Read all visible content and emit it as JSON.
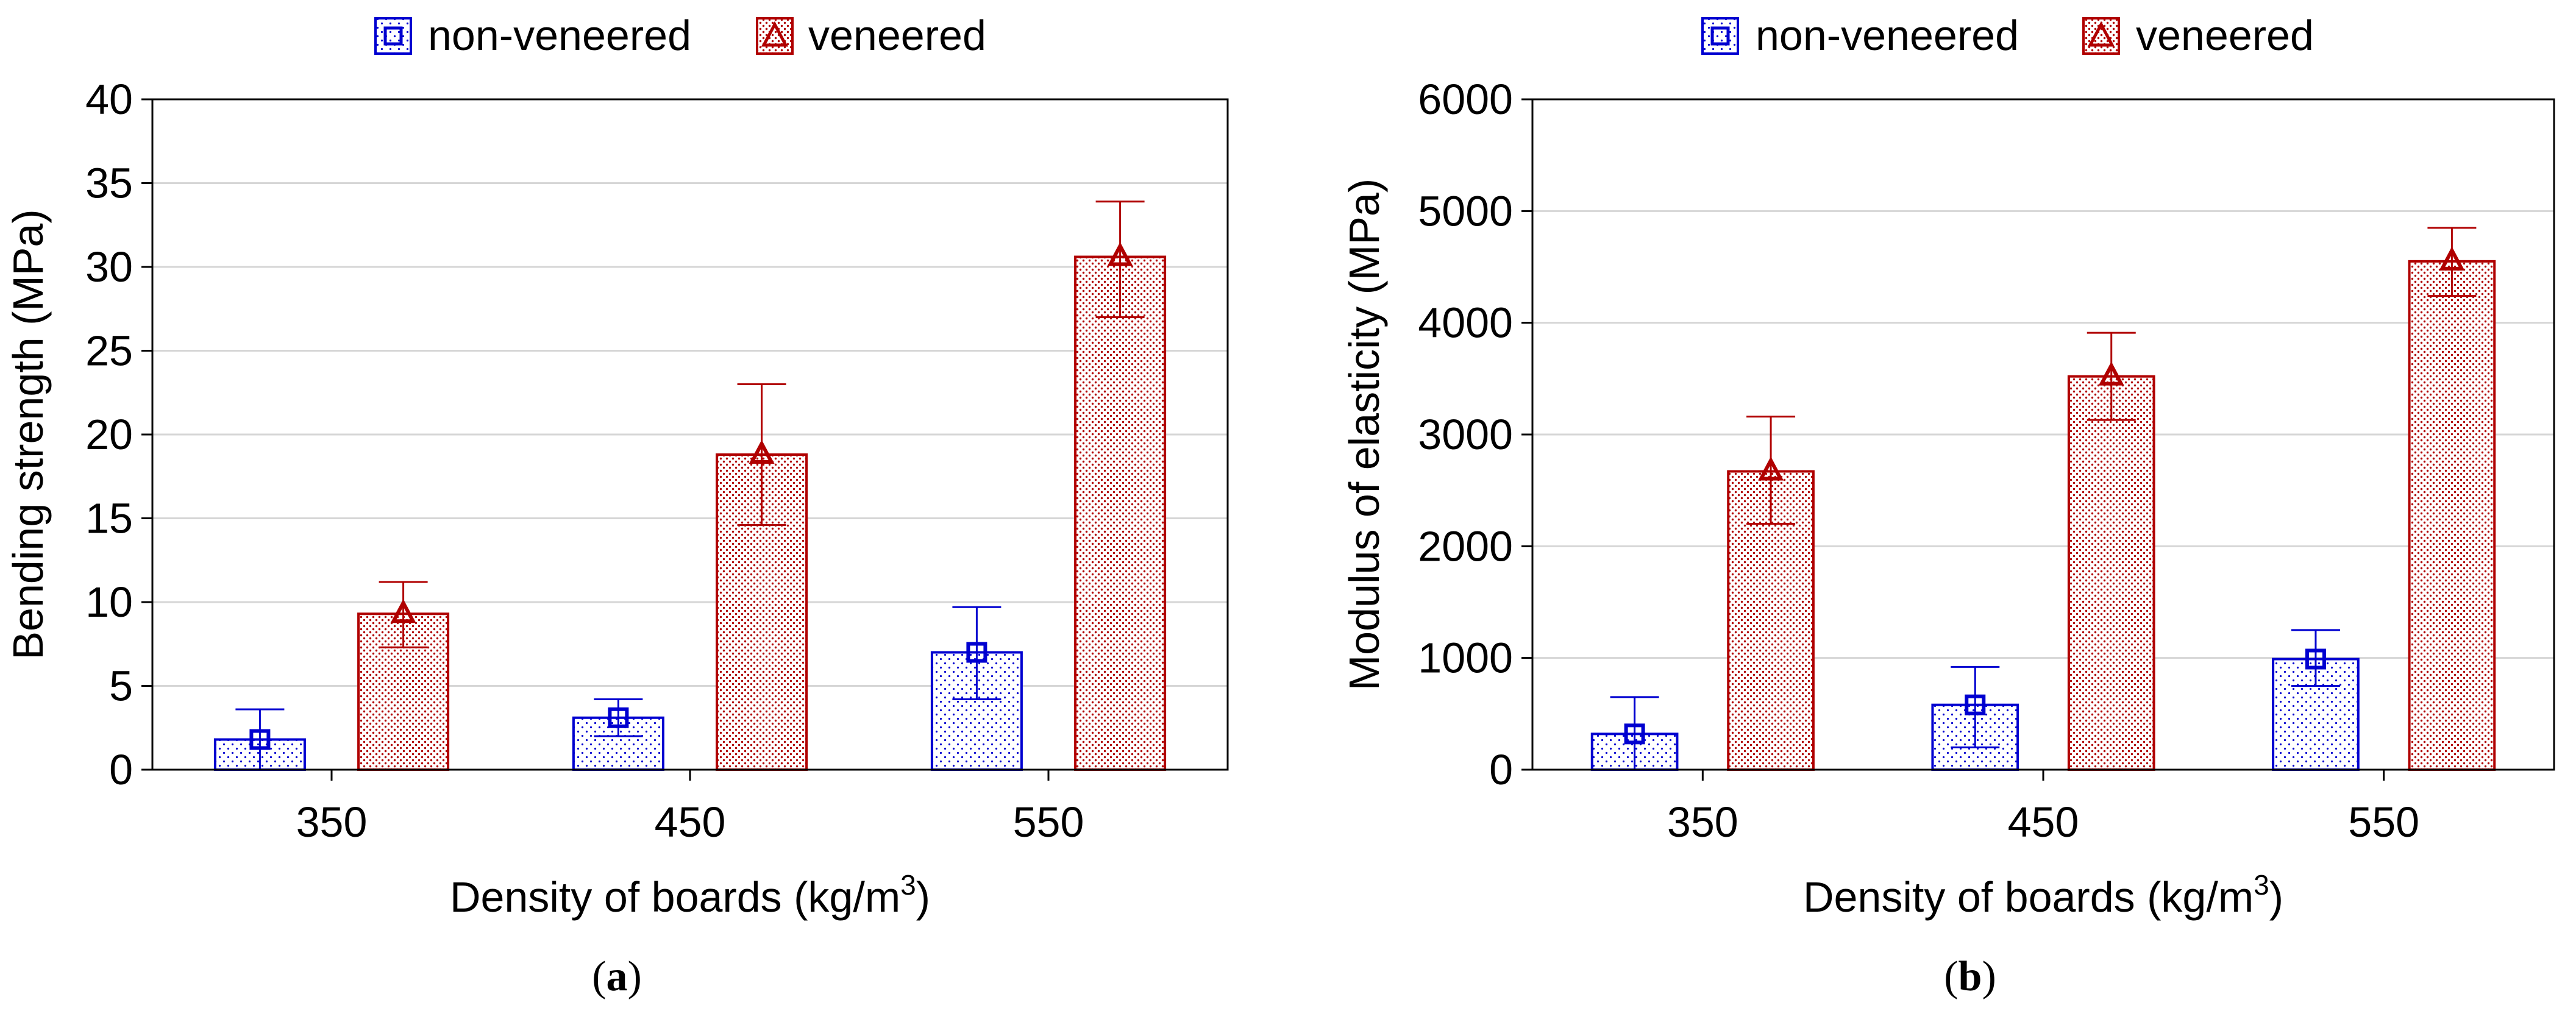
{
  "chart_data": [
    {
      "type": "bar",
      "panel_label": "a",
      "xlabel": "Density of boards (kg/m",
      "xlabel_sup": "3",
      "xlabel_end": ")",
      "ylabel": "Bending strength (MPa)",
      "categories": [
        "350",
        "450",
        "550"
      ],
      "ylim": [
        0,
        40
      ],
      "yticks": [
        0,
        5,
        10,
        15,
        20,
        25,
        30,
        35,
        40
      ],
      "grid": true,
      "legend_position": "top-center",
      "series": [
        {
          "name": "non-veneered",
          "marker": "square",
          "color": "#0000d0",
          "values": [
            1.8,
            3.1,
            7.0
          ],
          "err_low": [
            0.0,
            2.0,
            4.2
          ],
          "err_high": [
            3.6,
            4.2,
            9.7
          ]
        },
        {
          "name": "veneered",
          "marker": "triangle",
          "color": "#b00000",
          "values": [
            9.3,
            18.8,
            30.6
          ],
          "err_low": [
            7.3,
            14.6,
            27.0
          ],
          "err_high": [
            11.2,
            23.0,
            33.9
          ]
        }
      ]
    },
    {
      "type": "bar",
      "panel_label": "b",
      "xlabel": "Density of boards (kg/m",
      "xlabel_sup": "3",
      "xlabel_end": ")",
      "ylabel": "Modulus of elasticity (MPa)",
      "categories": [
        "350",
        "450",
        "550"
      ],
      "ylim": [
        0,
        6000
      ],
      "yticks": [
        0,
        1000,
        2000,
        3000,
        4000,
        5000,
        6000
      ],
      "grid": true,
      "legend_position": "top-center",
      "series": [
        {
          "name": "non-veneered",
          "marker": "square",
          "color": "#0000d0",
          "values": [
            320,
            580,
            990
          ],
          "err_low": [
            0,
            200,
            750
          ],
          "err_high": [
            650,
            920,
            1250
          ]
        },
        {
          "name": "veneered",
          "marker": "triangle",
          "color": "#b00000",
          "values": [
            2670,
            3520,
            4550
          ],
          "err_low": [
            2200,
            3130,
            4240
          ],
          "err_high": [
            3160,
            3910,
            4850
          ]
        }
      ]
    }
  ]
}
